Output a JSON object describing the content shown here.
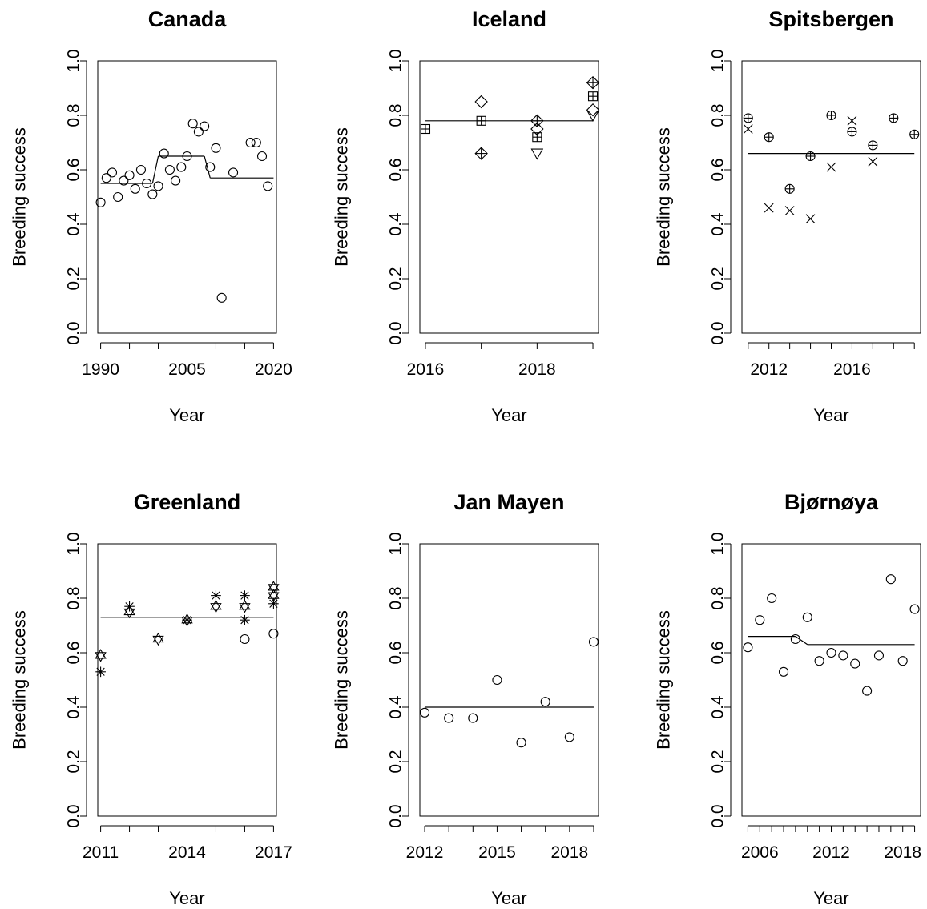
{
  "figure": {
    "background": "#ffffff",
    "ink": "#000000"
  },
  "chart_data": [
    {
      "type": "scatter",
      "title": "Canada",
      "xlabel": "Year",
      "ylabel": "Breeding success",
      "xlim": [
        1989.5,
        2020.5
      ],
      "ylim": [
        0,
        1
      ],
      "xticks": [
        1990,
        2005,
        2020
      ],
      "yticks": [
        0.0,
        0.2,
        0.4,
        0.6,
        0.8,
        1.0
      ],
      "grid": false,
      "trend": [
        {
          "x0": 1990,
          "x1": 1999,
          "y": 0.55
        },
        {
          "x0": 1999,
          "x1": 2000,
          "y0": 0.55,
          "y1": 0.65
        },
        {
          "x0": 2000,
          "x1": 2008,
          "y": 0.65
        },
        {
          "x0": 2008,
          "x1": 2009,
          "y0": 0.65,
          "y1": 0.57
        },
        {
          "x0": 2009,
          "x1": 2020,
          "y": 0.57
        }
      ],
      "series": [
        {
          "marker": "circle",
          "points": [
            [
              1990,
              0.48
            ],
            [
              1991,
              0.57
            ],
            [
              1992,
              0.59
            ],
            [
              1993,
              0.5
            ],
            [
              1994,
              0.56
            ],
            [
              1995,
              0.58
            ],
            [
              1996,
              0.53
            ],
            [
              1997,
              0.6
            ],
            [
              1998,
              0.55
            ],
            [
              1999,
              0.51
            ],
            [
              2000,
              0.54
            ],
            [
              2001,
              0.66
            ],
            [
              2002,
              0.6
            ],
            [
              2003,
              0.56
            ],
            [
              2004,
              0.61
            ],
            [
              2005,
              0.65
            ],
            [
              2006,
              0.77
            ],
            [
              2007,
              0.74
            ],
            [
              2008,
              0.76
            ],
            [
              2009,
              0.61
            ],
            [
              2010,
              0.68
            ],
            [
              2011,
              0.13
            ],
            [
              2013,
              0.59
            ],
            [
              2016,
              0.7
            ],
            [
              2017,
              0.7
            ],
            [
              2018,
              0.65
            ],
            [
              2019,
              0.54
            ]
          ]
        }
      ]
    },
    {
      "type": "scatter",
      "title": "Iceland",
      "xlabel": "Year",
      "ylabel": "Breeding success",
      "xlim": [
        2015.9,
        2019.1
      ],
      "ylim": [
        0,
        1
      ],
      "xticks": [
        2016,
        2018
      ],
      "yticks": [
        0.0,
        0.2,
        0.4,
        0.6,
        0.8,
        1.0
      ],
      "grid": false,
      "trend": [
        {
          "x0": 2016,
          "x1": 2019,
          "y": 0.78
        }
      ],
      "series": [
        {
          "marker": "boxed-plus",
          "points": [
            [
              2016,
              0.75
            ],
            [
              2017,
              0.78
            ],
            [
              2018,
              0.72
            ],
            [
              2019,
              0.87
            ]
          ]
        },
        {
          "marker": "diamond-plus",
          "points": [
            [
              2017,
              0.66
            ],
            [
              2018,
              0.78
            ],
            [
              2019,
              0.92
            ]
          ]
        },
        {
          "marker": "diamond",
          "points": [
            [
              2017,
              0.85
            ],
            [
              2018,
              0.75
            ],
            [
              2019,
              0.82
            ]
          ]
        },
        {
          "marker": "triangle-down",
          "points": [
            [
              2018,
              0.66
            ],
            [
              2019,
              0.8
            ]
          ]
        }
      ]
    },
    {
      "type": "scatter",
      "title": "Spitsbergen",
      "xlabel": "Year",
      "ylabel": "Breeding success",
      "xlim": [
        2010.7,
        2019.3
      ],
      "ylim": [
        0,
        1
      ],
      "xticks": [
        2012,
        2016
      ],
      "yticks": [
        0.0,
        0.2,
        0.4,
        0.6,
        0.8,
        1.0
      ],
      "grid": false,
      "trend": [
        {
          "x0": 2011,
          "x1": 2019,
          "y": 0.66
        }
      ],
      "series": [
        {
          "marker": "circle-plus",
          "points": [
            [
              2011,
              0.79
            ],
            [
              2012,
              0.72
            ],
            [
              2013,
              0.53
            ],
            [
              2014,
              0.65
            ],
            [
              2015,
              0.8
            ],
            [
              2016,
              0.74
            ],
            [
              2017,
              0.69
            ],
            [
              2018,
              0.79
            ],
            [
              2019,
              0.73
            ]
          ]
        },
        {
          "marker": "cross",
          "points": [
            [
              2011,
              0.75
            ],
            [
              2012,
              0.46
            ],
            [
              2013,
              0.45
            ],
            [
              2014,
              0.42
            ],
            [
              2015,
              0.61
            ],
            [
              2016,
              0.78
            ],
            [
              2017,
              0.63
            ]
          ]
        }
      ]
    },
    {
      "type": "scatter",
      "title": "Greenland",
      "xlabel": "Year",
      "ylabel": "Breeding success",
      "xlim": [
        2010.9,
        2017.1
      ],
      "ylim": [
        0,
        1
      ],
      "xticks": [
        2011,
        2014,
        2017
      ],
      "yticks": [
        0.0,
        0.2,
        0.4,
        0.6,
        0.8,
        1.0
      ],
      "grid": false,
      "trend": [
        {
          "x0": 2011,
          "x1": 2017,
          "y": 0.73
        }
      ],
      "series": [
        {
          "marker": "star-of-david",
          "points": [
            [
              2011,
              0.59
            ],
            [
              2012,
              0.75
            ],
            [
              2013,
              0.65
            ],
            [
              2014,
              0.72
            ],
            [
              2015,
              0.77
            ],
            [
              2016,
              0.77
            ],
            [
              2017,
              0.84
            ],
            [
              2017,
              0.81
            ]
          ]
        },
        {
          "marker": "asterisk",
          "points": [
            [
              2011,
              0.53
            ],
            [
              2012,
              0.77
            ],
            [
              2014,
              0.72
            ],
            [
              2015,
              0.81
            ],
            [
              2016,
              0.81
            ],
            [
              2016,
              0.72
            ],
            [
              2017,
              0.78
            ]
          ]
        },
        {
          "marker": "circle",
          "points": [
            [
              2016,
              0.65
            ],
            [
              2017,
              0.67
            ]
          ]
        }
      ]
    },
    {
      "type": "scatter",
      "title": "Jan Mayen",
      "xlabel": "Year",
      "ylabel": "Breeding success",
      "xlim": [
        2011.8,
        2019.2
      ],
      "ylim": [
        0,
        1
      ],
      "xticks": [
        2012,
        2015,
        2018
      ],
      "yticks": [
        0.0,
        0.2,
        0.4,
        0.6,
        0.8,
        1.0
      ],
      "grid": false,
      "trend": [
        {
          "x0": 2012,
          "x1": 2019,
          "y": 0.4
        }
      ],
      "series": [
        {
          "marker": "circle",
          "points": [
            [
              2012,
              0.38
            ],
            [
              2013,
              0.36
            ],
            [
              2014,
              0.36
            ],
            [
              2015,
              0.5
            ],
            [
              2016,
              0.27
            ],
            [
              2017,
              0.42
            ],
            [
              2018,
              0.29
            ],
            [
              2019,
              0.64
            ]
          ]
        }
      ]
    },
    {
      "type": "scatter",
      "title": "Bjørnøya",
      "xlabel": "Year",
      "ylabel": "Breeding success",
      "xlim": [
        2004.5,
        2019.5
      ],
      "ylim": [
        0,
        1
      ],
      "xticks": [
        2006,
        2012,
        2018
      ],
      "yticks": [
        0.0,
        0.2,
        0.4,
        0.6,
        0.8,
        1.0
      ],
      "grid": false,
      "trend": [
        {
          "x0": 2005,
          "x1": 2009,
          "y": 0.66
        },
        {
          "x0": 2009,
          "x1": 2010,
          "y0": 0.66,
          "y1": 0.63
        },
        {
          "x0": 2010,
          "x1": 2019,
          "y": 0.63
        }
      ],
      "series": [
        {
          "marker": "circle",
          "points": [
            [
              2005,
              0.62
            ],
            [
              2006,
              0.72
            ],
            [
              2007,
              0.8
            ],
            [
              2008,
              0.53
            ],
            [
              2009,
              0.65
            ],
            [
              2010,
              0.73
            ],
            [
              2011,
              0.57
            ],
            [
              2012,
              0.6
            ],
            [
              2013,
              0.59
            ],
            [
              2014,
              0.56
            ],
            [
              2015,
              0.46
            ],
            [
              2016,
              0.59
            ],
            [
              2017,
              0.87
            ],
            [
              2018,
              0.57
            ],
            [
              2019,
              0.76
            ]
          ]
        }
      ]
    }
  ]
}
